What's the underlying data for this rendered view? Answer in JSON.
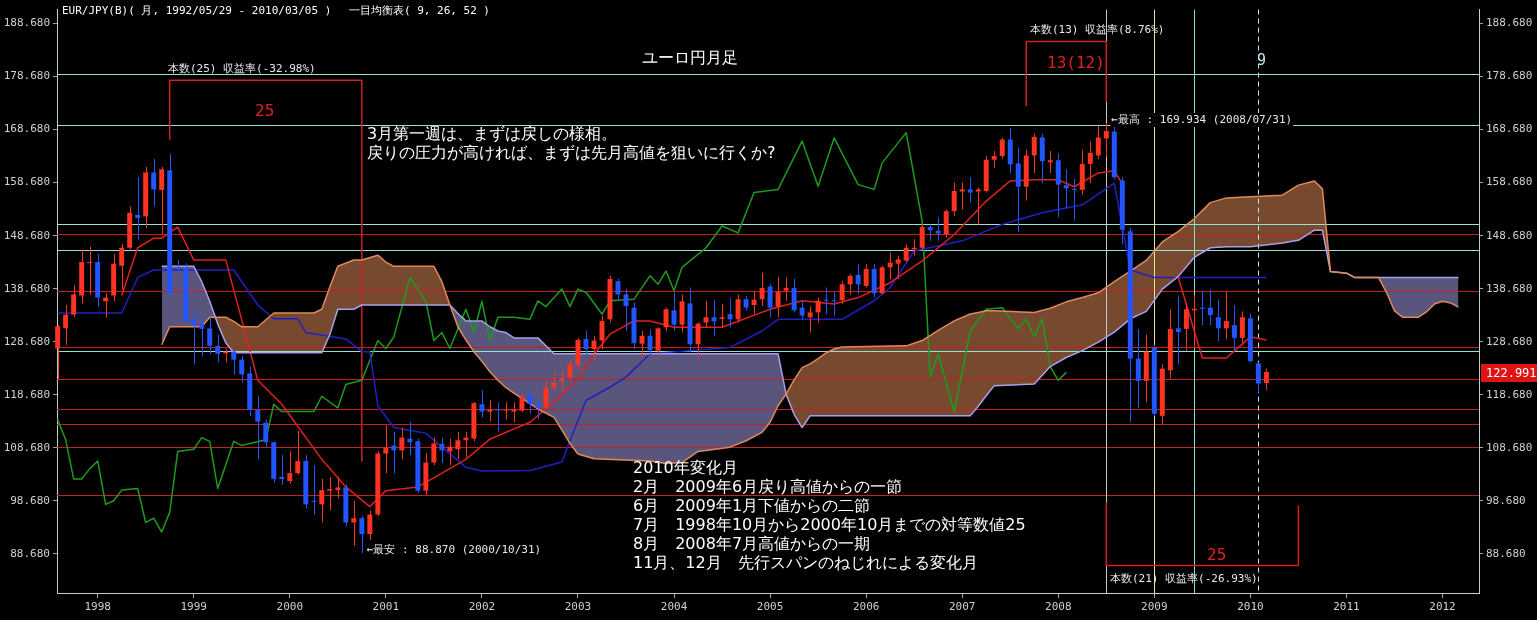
{
  "chart_data": {
    "type": "candlestick",
    "title": "EUR/JPY(B)( 月, 1992/05/29 - 2010/03/05 )　 一目均衡表( 9, 26, 52 )",
    "subtitle": "ユーロ円月足",
    "x": [
      "1997-08",
      "1997-09",
      "1997-10",
      "1997-11",
      "1997-12",
      "1998-01",
      "1998-02",
      "1998-03",
      "1998-04",
      "1998-05",
      "1998-06",
      "1998-07",
      "1998-08",
      "1998-09",
      "1998-10",
      "1998-11",
      "1998-12",
      "1999-01",
      "1999-02",
      "1999-03",
      "1999-04",
      "1999-05",
      "1999-06",
      "1999-07",
      "1999-08",
      "1999-09",
      "1999-10",
      "1999-11",
      "1999-12",
      "2000-01",
      "2000-02",
      "2000-03",
      "2000-04",
      "2000-05",
      "2000-06",
      "2000-07",
      "2000-08",
      "2000-09",
      "2000-10",
      "2000-11",
      "2000-12",
      "2001-01",
      "2001-02",
      "2001-03",
      "2001-04",
      "2001-05",
      "2001-06",
      "2001-07",
      "2001-08",
      "2001-09",
      "2001-10",
      "2001-11",
      "2001-12",
      "2002-01",
      "2002-02",
      "2002-03",
      "2002-04",
      "2002-05",
      "2002-06",
      "2002-07",
      "2002-08",
      "2002-09",
      "2002-10",
      "2002-11",
      "2002-12",
      "2003-01",
      "2003-02",
      "2003-03",
      "2003-04",
      "2003-05",
      "2003-06",
      "2003-07",
      "2003-08",
      "2003-09",
      "2003-10",
      "2003-11",
      "2003-12",
      "2004-01",
      "2004-02",
      "2004-03",
      "2004-04",
      "2004-05",
      "2004-06",
      "2004-07",
      "2004-08",
      "2004-09",
      "2004-10",
      "2004-11",
      "2004-12",
      "2005-01",
      "2005-02",
      "2005-03",
      "2005-04",
      "2005-05",
      "2005-06",
      "2005-07",
      "2005-08",
      "2005-09",
      "2005-10",
      "2005-11",
      "2005-12",
      "2006-01",
      "2006-02",
      "2006-03",
      "2006-04",
      "2006-05",
      "2006-06",
      "2006-07",
      "2006-08",
      "2006-09",
      "2006-10",
      "2006-11",
      "2006-12",
      "2007-01",
      "2007-02",
      "2007-03",
      "2007-04",
      "2007-05",
      "2007-06",
      "2007-07",
      "2007-08",
      "2007-09",
      "2007-10",
      "2007-11",
      "2007-12",
      "2008-01",
      "2008-02",
      "2008-03",
      "2008-04",
      "2008-05",
      "2008-06",
      "2008-07",
      "2008-08",
      "2008-09",
      "2008-10",
      "2008-11",
      "2008-12",
      "2009-01",
      "2009-02",
      "2009-03",
      "2009-04",
      "2009-05",
      "2009-06",
      "2009-07",
      "2009-08",
      "2009-09",
      "2009-10",
      "2009-11",
      "2009-12",
      "2010-01",
      "2010-02",
      "2010-03"
    ],
    "ohlc": [
      [
        127.4,
        131.8,
        121.6,
        131.6
      ],
      [
        131.2,
        135.6,
        128.1,
        133.8
      ],
      [
        133.8,
        139.4,
        133.3,
        137.6
      ],
      [
        137.4,
        146.1,
        135.9,
        143.7
      ],
      [
        143.5,
        146.6,
        137.6,
        143.7
      ],
      [
        143.7,
        145.2,
        135.2,
        137.0
      ],
      [
        136.3,
        137.8,
        133.3,
        137.0
      ],
      [
        137.4,
        145.2,
        136.3,
        143.4
      ],
      [
        143.0,
        147.1,
        138.5,
        146.4
      ],
      [
        146.4,
        154.2,
        146.1,
        153.0
      ],
      [
        152.6,
        159.7,
        147.8,
        152.0
      ],
      [
        152.3,
        161.6,
        150.1,
        160.6
      ],
      [
        160.6,
        163.1,
        154.2,
        157.4
      ],
      [
        157.3,
        161.6,
        148.9,
        161.2
      ],
      [
        161.0,
        164.0,
        137.4,
        137.8
      ],
      [
        142.6,
        144.1,
        141.5,
        142.4
      ],
      [
        142.6,
        143.4,
        132.4,
        132.6
      ],
      [
        132.9,
        134.8,
        124.4,
        131.8
      ],
      [
        132.0,
        133.7,
        125.9,
        131.1
      ],
      [
        131.2,
        133.3,
        126.3,
        127.9
      ],
      [
        127.9,
        130.0,
        124.8,
        126.4
      ],
      [
        126.5,
        127.4,
        124.8,
        126.8
      ],
      [
        126.8,
        127.4,
        122.5,
        125.3
      ],
      [
        125.3,
        126.0,
        121.0,
        122.5
      ],
      [
        122.7,
        124.0,
        114.7,
        115.8
      ],
      [
        115.8,
        118.4,
        106.5,
        113.6
      ],
      [
        113.4,
        114.0,
        108.8,
        109.7
      ],
      [
        109.7,
        109.9,
        102.1,
        102.8
      ],
      [
        103.2,
        107.3,
        101.7,
        102.8
      ],
      [
        102.4,
        108.0,
        101.9,
        103.9
      ],
      [
        103.9,
        111.9,
        103.6,
        106.2
      ],
      [
        106.2,
        107.3,
        97.2,
        98.0
      ],
      [
        98.7,
        105.4,
        96.1,
        98.5
      ],
      [
        98.0,
        102.8,
        94.6,
        100.7
      ],
      [
        100.6,
        103.2,
        96.9,
        100.9
      ],
      [
        100.7,
        103.2,
        99.1,
        101.2
      ],
      [
        101.2,
        101.7,
        93.9,
        94.6
      ],
      [
        94.6,
        98.7,
        90.2,
        95.4
      ],
      [
        95.4,
        95.8,
        88.87,
        92.4
      ],
      [
        92.4,
        96.9,
        91.3,
        96.1
      ],
      [
        96.1,
        108.0,
        95.8,
        107.6
      ],
      [
        107.6,
        112.9,
        103.9,
        108.7
      ],
      [
        109.1,
        111.7,
        103.9,
        108.2
      ],
      [
        108.2,
        112.5,
        106.5,
        110.6
      ],
      [
        110.4,
        113.6,
        107.3,
        109.7
      ],
      [
        109.9,
        110.4,
        100.2,
        100.6
      ],
      [
        100.6,
        107.7,
        99.7,
        105.9
      ],
      [
        105.9,
        110.6,
        105.4,
        109.5
      ],
      [
        109.4,
        110.6,
        105.8,
        108.2
      ],
      [
        108.0,
        110.4,
        105.4,
        108.9
      ],
      [
        108.4,
        111.7,
        106.5,
        110.1
      ],
      [
        110.1,
        111.7,
        106.9,
        110.6
      ],
      [
        110.4,
        117.3,
        109.9,
        117.1
      ],
      [
        116.9,
        119.5,
        114.4,
        115.5
      ],
      [
        115.5,
        117.7,
        113.6,
        115.8
      ],
      [
        115.9,
        117.1,
        111.7,
        115.8
      ],
      [
        115.7,
        117.3,
        114.0,
        115.9
      ],
      [
        115.5,
        117.3,
        113.5,
        115.8
      ],
      [
        115.7,
        118.8,
        115.4,
        118.2
      ],
      [
        118.5,
        119.5,
        115.1,
        116.9
      ],
      [
        116.9,
        117.9,
        114.1,
        116.2
      ],
      [
        116.3,
        121.6,
        116.0,
        120.0
      ],
      [
        120.1,
        122.9,
        119.4,
        121.0
      ],
      [
        121.3,
        123.2,
        119.4,
        121.8
      ],
      [
        121.9,
        125.1,
        121.3,
        124.5
      ],
      [
        124.3,
        129.4,
        123.5,
        129.0
      ],
      [
        129.2,
        130.7,
        126.0,
        127.3
      ],
      [
        127.3,
        129.8,
        125.4,
        128.9
      ],
      [
        128.9,
        133.6,
        127.3,
        132.6
      ],
      [
        132.9,
        141.1,
        132.3,
        140.5
      ],
      [
        140.1,
        140.5,
        136.4,
        137.6
      ],
      [
        137.6,
        138.6,
        130.7,
        135.4
      ],
      [
        135.1,
        136.1,
        127.3,
        128.4
      ],
      [
        128.3,
        130.7,
        125.7,
        129.8
      ],
      [
        129.8,
        131.0,
        126.0,
        127.1
      ],
      [
        127.0,
        131.4,
        126.4,
        131.2
      ],
      [
        131.4,
        135.1,
        130.7,
        134.8
      ],
      [
        134.6,
        137.9,
        130.7,
        131.9
      ],
      [
        131.9,
        137.6,
        130.4,
        136.3
      ],
      [
        135.9,
        138.9,
        126.7,
        128.2
      ],
      [
        128.2,
        132.3,
        125.7,
        132.1
      ],
      [
        132.3,
        136.4,
        131.4,
        133.3
      ],
      [
        133.3,
        136.5,
        129.8,
        132.5
      ],
      [
        133.0,
        135.8,
        131.4,
        133.3
      ],
      [
        133.9,
        136.9,
        131.4,
        132.9
      ],
      [
        132.9,
        137.6,
        132.3,
        136.7
      ],
      [
        136.7,
        137.3,
        134.5,
        135.1
      ],
      [
        135.6,
        138.3,
        133.9,
        136.6
      ],
      [
        136.7,
        141.7,
        135.4,
        138.8
      ],
      [
        139.1,
        139.5,
        133.3,
        135.1
      ],
      [
        135.3,
        140.9,
        133.3,
        138.1
      ],
      [
        138.3,
        140.8,
        136.4,
        138.8
      ],
      [
        138.8,
        140.5,
        134.2,
        134.6
      ],
      [
        135.1,
        136.4,
        132.9,
        133.6
      ],
      [
        133.3,
        135.4,
        130.4,
        134.2
      ],
      [
        134.2,
        137.0,
        132.3,
        136.4
      ],
      [
        136.6,
        138.9,
        133.9,
        136.4
      ],
      [
        136.5,
        138.0,
        133.6,
        136.3
      ],
      [
        136.5,
        140.1,
        135.8,
        139.5
      ],
      [
        139.5,
        141.4,
        137.6,
        141.1
      ],
      [
        141.3,
        143.3,
        137.6,
        139.5
      ],
      [
        139.2,
        143.3,
        138.9,
        142.4
      ],
      [
        142.4,
        143.3,
        137.0,
        137.8
      ],
      [
        137.8,
        143.0,
        137.6,
        142.7
      ],
      [
        142.7,
        145.5,
        140.5,
        143.6
      ],
      [
        143.4,
        144.9,
        140.5,
        144.2
      ],
      [
        144.0,
        147.0,
        143.6,
        146.4
      ],
      [
        146.1,
        148.0,
        144.9,
        146.4
      ],
      [
        146.4,
        150.8,
        146.1,
        150.3
      ],
      [
        150.3,
        150.8,
        147.7,
        149.7
      ],
      [
        149.6,
        152.1,
        147.7,
        149.1
      ],
      [
        148.9,
        153.6,
        148.3,
        153.3
      ],
      [
        153.3,
        158.7,
        152.4,
        157.1
      ],
      [
        157.0,
        158.7,
        153.6,
        157.4
      ],
      [
        157.4,
        159.7,
        154.9,
        156.8
      ],
      [
        157.0,
        157.7,
        150.8,
        157.4
      ],
      [
        157.1,
        163.7,
        156.8,
        163.0
      ],
      [
        163.0,
        164.6,
        161.5,
        163.7
      ],
      [
        163.7,
        167.1,
        163.2,
        166.8
      ],
      [
        166.8,
        169.0,
        160.5,
        162.1
      ],
      [
        162.3,
        165.3,
        149.3,
        157.9
      ],
      [
        157.9,
        164.9,
        155.3,
        163.8
      ],
      [
        163.8,
        167.9,
        160.5,
        167.3
      ],
      [
        167.2,
        167.9,
        158.6,
        162.7
      ],
      [
        162.5,
        164.6,
        160.5,
        162.9
      ],
      [
        162.9,
        164.2,
        152.2,
        158.3
      ],
      [
        158.2,
        161.2,
        153.8,
        157.6
      ],
      [
        157.5,
        159.4,
        151.5,
        157.3
      ],
      [
        157.3,
        164.9,
        156.4,
        162.2
      ],
      [
        162.2,
        166.4,
        158.6,
        164.3
      ],
      [
        163.8,
        169.4,
        163.1,
        167.2
      ],
      [
        167.0,
        169.934,
        163.5,
        168.4
      ],
      [
        168.3,
        169.2,
        159.3,
        159.7
      ],
      [
        159.1,
        159.7,
        147.1,
        149.8
      ],
      [
        149.5,
        150.1,
        113.6,
        125.5
      ],
      [
        125.5,
        131.1,
        116.2,
        121.3
      ],
      [
        121.3,
        130.0,
        117.3,
        126.8
      ],
      [
        127.5,
        128.1,
        114.7,
        115.1
      ],
      [
        114.7,
        124.4,
        113.2,
        123.6
      ],
      [
        123.3,
        134.8,
        121.8,
        131.1
      ],
      [
        131.2,
        137.4,
        124.4,
        130.5
      ],
      [
        131.1,
        135.9,
        127.0,
        134.8
      ],
      [
        134.6,
        137.4,
        127.4,
        134.9
      ],
      [
        135.1,
        138.1,
        131.8,
        134.9
      ],
      [
        135.1,
        138.5,
        131.8,
        133.7
      ],
      [
        133.3,
        136.6,
        128.8,
        131.2
      ],
      [
        131.2,
        138.1,
        129.2,
        132.6
      ],
      [
        131.8,
        135.6,
        127.0,
        129.4
      ],
      [
        129.4,
        134.4,
        128.1,
        133.3
      ],
      [
        133.1,
        134.0,
        124.8,
        125.0
      ],
      [
        124.6,
        124.8,
        119.2,
        120.8
      ],
      [
        120.9,
        123.6,
        119.6,
        122.991
      ]
    ],
    "colors": [
      "#ff3322",
      "#ff3322",
      "#ff3322",
      "#ff3322",
      "#ff3322",
      "#2255ff",
      "#ff3322",
      "#ff3322",
      "#ff3322",
      "#ff3322",
      "#2255ff",
      "#ff3322",
      "#2255ff",
      "#ff3322",
      "#2255ff",
      "#2255ff",
      "#2255ff",
      "#2255ff",
      "#2255ff",
      "#2255ff",
      "#2255ff",
      "#ff3322",
      "#2255ff",
      "#2255ff",
      "#2255ff",
      "#2255ff",
      "#2255ff",
      "#2255ff",
      "#2255ff",
      "#ff3322",
      "#ff3322",
      "#2255ff",
      "#2255ff",
      "#ff3322",
      "#ff3322",
      "#ff3322",
      "#2255ff",
      "#ff3322",
      "#2255ff",
      "#ff3322",
      "#ff3322",
      "#ff3322",
      "#2255ff",
      "#ff3322",
      "#2255ff",
      "#2255ff",
      "#ff3322",
      "#ff3322",
      "#2255ff",
      "#ff3322",
      "#ff3322",
      "#ff3322",
      "#ff3322",
      "#2255ff",
      "#ff3322",
      "#2255ff",
      "#ff3322",
      "#ff3322",
      "#ff3322",
      "#2255ff",
      "#2255ff",
      "#ff3322",
      "#ff3322",
      "#ff3322",
      "#ff3322",
      "#ff3322",
      "#2255ff",
      "#ff3322",
      "#ff3322",
      "#ff3322",
      "#2255ff",
      "#2255ff",
      "#2255ff",
      "#ff3322",
      "#2255ff",
      "#ff3322",
      "#ff3322",
      "#2255ff",
      "#ff3322",
      "#2255ff",
      "#ff3322",
      "#ff3322",
      "#2255ff",
      "#ff3322",
      "#2255ff",
      "#ff3322",
      "#2255ff",
      "#ff3322",
      "#ff3322",
      "#2255ff",
      "#ff3322",
      "#ff3322",
      "#2255ff",
      "#2255ff",
      "#ff3322",
      "#ff3322",
      "#2255ff",
      "#2255ff",
      "#ff3322",
      "#ff3322",
      "#2255ff",
      "#ff3322",
      "#2255ff",
      "#ff3322",
      "#ff3322",
      "#ff3322",
      "#ff3322",
      "#ff3322",
      "#ff3322",
      "#2255ff",
      "#2255ff",
      "#ff3322",
      "#ff3322",
      "#ff3322",
      "#2255ff",
      "#ff3322",
      "#ff3322",
      "#ff3322",
      "#ff3322",
      "#2255ff",
      "#2255ff",
      "#ff3322",
      "#ff3322",
      "#2255ff",
      "#ff3322",
      "#2255ff",
      "#2255ff",
      "#2255ff",
      "#ff3322",
      "#ff3322",
      "#ff3322",
      "#ff3322",
      "#2255ff",
      "#2255ff",
      "#2255ff",
      "#2255ff",
      "#ff3322",
      "#2255ff",
      "#ff3322",
      "#ff3322",
      "#2255ff",
      "#ff3322",
      "#ff3322",
      "#2255ff",
      "#2255ff",
      "#2255ff",
      "#ff3322",
      "#2255ff",
      "#ff3322",
      "#2255ff",
      "#2255ff",
      "#ff3322"
    ],
    "series": [
      {
        "type": "line",
        "color": "#e08a5a",
        "upper": [
          128.1,
          131.5,
          131.5,
          131.5,
          133.3,
          133.3,
          133.3,
          132.5,
          131.5,
          131.5,
          134.1,
          134.1,
          134.8,
          139.0,
          142.9,
          144.1,
          144.1,
          145.0,
          143.7,
          142.9,
          142.9,
          140.0,
          135.6,
          131.5,
          129.0,
          126.8,
          125.0,
          123.0,
          121.4,
          120.0,
          119.0,
          116.0,
          114.4,
          112.0,
          109.5,
          107.5,
          106.6,
          106.2,
          105.7,
          105.9,
          108.0,
          108.8,
          110.0,
          111.6,
          113.5,
          116.6,
          118.8,
          121.5,
          123.8,
          124.5,
          125.5,
          126.6,
          127.3,
          127.7,
          127.9,
          128.9,
          130.8,
          132.6,
          133.9,
          134.2,
          134.5,
          134.5,
          134.2,
          135.0,
          136.2,
          137.0,
          137.9,
          140.0,
          142.0,
          144.0,
          147.5,
          149.5,
          151.9,
          154.9,
          155.8,
          156.0,
          156.3,
          158.2,
          159.0,
          157.5,
          141.9,
          141.6,
          140.8,
          140.8,
          138.0,
          134.5,
          133.3,
          133.3,
          134.3,
          135.8,
          136.3,
          136.0,
          135.2
        ],
        "lower": [
          142.9,
          142.9,
          142.9,
          140.0,
          136.3,
          132.0,
          128.5,
          126.6,
          126.6,
          126.6,
          126.6,
          126.6,
          126.6,
          130.0,
          134.8,
          134.8,
          135.6,
          135.6,
          135.6,
          135.6,
          135.6,
          135.6,
          135.6,
          134.0,
          132.6,
          132.6,
          132.6,
          131.5,
          130.7,
          130.4,
          129.4,
          129.4,
          126.4,
          126.4,
          126.4,
          126.4,
          126.4,
          126.4,
          126.4,
          126.4,
          126.4,
          126.4,
          126.4,
          126.4,
          126.4,
          126.4,
          118.8,
          115.0,
          112.5,
          114.7,
          114.7,
          114.7,
          114.7,
          114.7,
          114.7,
          114.7,
          114.7,
          114.7,
          114.7,
          116.5,
          118.5,
          120.4,
          120.7,
          124.0,
          125.7,
          127.0,
          128.6,
          130.5,
          133.0,
          134.4,
          138.6,
          141.0,
          144.6,
          146.4,
          146.6,
          146.6,
          147.3,
          147.8,
          149.7,
          149.7,
          141.9,
          141.6,
          140.8,
          140.8,
          140.8,
          140.8,
          140.8,
          140.8,
          140.8,
          140.8,
          140.8,
          140.8,
          140.8
        ],
        "x": [
          "1998-09",
          "1998-10",
          "1999-01",
          "1999-02",
          "1999-03",
          "1999-04",
          "1999-05",
          "1999-06",
          "1999-07",
          "1999-09",
          "1999-11",
          "2000-04",
          "2000-05",
          "2000-06",
          "2000-07",
          "2000-09",
          "2000-10",
          "2000-12",
          "2001-01",
          "2001-02",
          "2001-07",
          "2001-08",
          "2001-09",
          "2001-10",
          "2001-11",
          "2001-12",
          "2002-01",
          "2002-02",
          "2002-03",
          "2002-04",
          "2002-05",
          "2002-08",
          "2002-10",
          "2002-11",
          "2002-12",
          "2003-01",
          "2003-03",
          "2003-10",
          "2003-12",
          "2004-02",
          "2004-04",
          "2004-08",
          "2004-10",
          "2004-12",
          "2005-01",
          "2005-02",
          "2005-03",
          "2005-04",
          "2005-05",
          "2005-06",
          "2005-07",
          "2005-08",
          "2005-09",
          "2005-10",
          "2006-06",
          "2006-08",
          "2006-10",
          "2006-12",
          "2007-02",
          "2007-03",
          "2007-04",
          "2007-05",
          "2007-10",
          "2007-12",
          "2008-02",
          "2008-04",
          "2008-06",
          "2008-08",
          "2008-10",
          "2008-12",
          "2009-02",
          "2009-04",
          "2009-06",
          "2009-08",
          "2009-10",
          "2010-01",
          "2010-05",
          "2010-07",
          "2010-09",
          "2010-10",
          "2010-11",
          "2011-01",
          "2011-02",
          "2011-05",
          "2011-06",
          "2011-07",
          "2011-08",
          "2011-10",
          "2011-11",
          "2011-12",
          "2012-01",
          "2012-02",
          "2012-03"
        ],
        "values": [
          128.1,
          131.5,
          131.5,
          131.5,
          133.3,
          133.3,
          133.3,
          132.5,
          131.5,
          131.5,
          134.1,
          134.1,
          134.8,
          139.0,
          142.9,
          144.1,
          144.1,
          145.0,
          143.7,
          142.9,
          142.9,
          140.0,
          135.6,
          131.5,
          129.0,
          126.8,
          125.0,
          123.0,
          121.4,
          120.0,
          119.0,
          116.0,
          114.4,
          112.0,
          109.5,
          107.5,
          106.6,
          106.2,
          105.7,
          105.9,
          108.0,
          108.8,
          110.0,
          111.6,
          113.5,
          116.6,
          118.8,
          121.5,
          123.8,
          124.5,
          125.5,
          126.6,
          127.3,
          127.7,
          127.9,
          128.9,
          130.8,
          132.6,
          133.9,
          134.2,
          134.5,
          134.5,
          134.2,
          135.0,
          136.2,
          137.0,
          137.9,
          140.0,
          142.0,
          144.0,
          147.5,
          149.5,
          151.9,
          154.9,
          155.8,
          156.0,
          156.3,
          158.2,
          159.0,
          157.5,
          141.9,
          141.6,
          140.8,
          140.8,
          138.0,
          134.5,
          133.3,
          133.3,
          134.3,
          135.8,
          136.3,
          136.0,
          135.2
        ]
      },
      {
        "type": "line",
        "color": "#a8a0e8",
        "x": [
          "1998-09",
          "1998-10",
          "1999-01",
          "1999-02",
          "1999-03",
          "1999-04",
          "1999-05",
          "1999-06",
          "1999-07",
          "1999-09",
          "1999-11",
          "2000-04",
          "2000-05",
          "2000-06",
          "2000-07",
          "2000-09",
          "2000-10",
          "2000-12",
          "2001-01",
          "2001-02",
          "2001-07",
          "2001-08",
          "2001-09",
          "2001-10",
          "2001-11",
          "2001-12",
          "2002-01",
          "2002-02",
          "2002-03",
          "2002-04",
          "2002-05",
          "2002-08",
          "2002-10",
          "2002-11",
          "2002-12",
          "2003-01",
          "2003-03",
          "2003-10",
          "2003-12",
          "2004-02",
          "2004-04",
          "2004-08",
          "2004-10",
          "2004-12",
          "2005-01",
          "2005-02",
          "2005-03",
          "2005-04",
          "2005-05",
          "2005-06",
          "2005-07",
          "2005-08",
          "2005-09",
          "2005-10",
          "2006-06",
          "2006-08",
          "2006-10",
          "2006-12",
          "2007-02",
          "2007-03",
          "2007-04",
          "2007-05",
          "2007-10",
          "2007-12",
          "2008-02",
          "2008-04",
          "2008-06",
          "2008-08",
          "2008-10",
          "2008-12",
          "2009-02",
          "2009-04",
          "2009-06",
          "2009-08",
          "2009-10",
          "2010-01",
          "2010-05",
          "2010-07",
          "2010-09",
          "2010-10",
          "2010-11",
          "2011-01",
          "2011-02",
          "2011-05",
          "2011-06",
          "2011-07",
          "2011-08",
          "2011-10",
          "2011-11",
          "2011-12",
          "2012-01",
          "2012-02",
          "2012-03"
        ],
        "values": [
          142.9,
          142.9,
          142.9,
          140.0,
          136.3,
          132.0,
          128.5,
          126.6,
          126.6,
          126.6,
          126.6,
          126.6,
          126.6,
          130.0,
          134.8,
          134.8,
          135.6,
          135.6,
          135.6,
          135.6,
          135.6,
          135.6,
          135.6,
          134.0,
          132.6,
          132.6,
          132.6,
          131.5,
          130.7,
          130.4,
          129.4,
          129.4,
          126.4,
          126.4,
          126.4,
          126.4,
          126.4,
          126.4,
          126.4,
          126.4,
          126.4,
          126.4,
          126.4,
          126.4,
          126.4,
          126.4,
          118.8,
          115.0,
          112.5,
          114.7,
          114.7,
          114.7,
          114.7,
          114.7,
          114.7,
          114.7,
          114.7,
          114.7,
          114.7,
          116.5,
          118.5,
          120.4,
          120.7,
          124.0,
          125.7,
          127.0,
          128.6,
          130.5,
          133.0,
          134.4,
          138.6,
          141.0,
          144.6,
          146.4,
          146.6,
          146.6,
          147.3,
          147.8,
          149.7,
          149.7,
          141.9,
          141.6,
          140.8,
          140.8,
          140.8,
          140.8,
          140.8,
          140.8,
          140.8,
          140.8,
          140.8,
          140.8,
          140.8
        ]
      },
      {
        "type": "line",
        "color": "#e02020",
        "x": [
          "1998-04",
          "1998-06",
          "1998-08",
          "1998-09",
          "1998-11",
          "1999-01",
          "1999-05",
          "1999-09",
          "1999-12",
          "2000-05",
          "2000-08",
          "2000-11",
          "2001-01",
          "2001-05",
          "2001-11",
          "2002-02",
          "2002-07",
          "2002-10",
          "2003-01",
          "2003-03",
          "2003-05",
          "2003-08",
          "2003-10",
          "2004-01",
          "2004-07",
          "2005-01",
          "2005-05",
          "2005-09",
          "2005-12",
          "2006-04",
          "2006-08",
          "2006-12",
          "2007-04",
          "2007-07",
          "2007-10",
          "2008-01",
          "2008-03",
          "2008-06",
          "2008-08",
          "2008-09",
          "2008-10",
          "2009-04",
          "2009-07",
          "2009-10",
          "2010-01",
          "2010-03"
        ],
        "values": [
          137.4,
          146.4,
          148.2,
          148.2,
          150.3,
          144.1,
          144.1,
          121.4,
          116.9,
          106.5,
          101.3,
          97.6,
          100.6,
          101.3,
          106.5,
          110.3,
          113.5,
          117.3,
          121.6,
          126.3,
          130.1,
          132.6,
          132.6,
          131.4,
          131.4,
          134.8,
          136.4,
          135.8,
          137.0,
          139.8,
          143.9,
          148.9,
          155.2,
          159.0,
          159.2,
          159.2,
          157.9,
          160.5,
          160.9,
          158.5,
          null,
          140.8,
          125.6,
          125.6,
          129.6,
          129.0
        ]
      },
      {
        "type": "line",
        "color": "#2020c0",
        "x": [
          "1997-08",
          "1998-04",
          "1998-06",
          "1998-08",
          "1999-06",
          "1999-09",
          "1999-11",
          "2000-02",
          "2000-03",
          "2000-08",
          "2000-10",
          "2000-11",
          "2000-12",
          "2001-02",
          "2001-06",
          "2001-11",
          "2002-01",
          "2002-07",
          "2002-11",
          "2002-12",
          "2003-02",
          "2003-05",
          "2003-07",
          "2003-10",
          "2004-03",
          "2004-08",
          "2004-12",
          "2005-02",
          "2005-10",
          "2006-02",
          "2006-04",
          "2006-07",
          "2007-01",
          "2007-06",
          "2007-11",
          "2008-04",
          "2008-08",
          "2008-10",
          "2009-01",
          "2010-03"
        ],
        "values": [
          134.1,
          134.1,
          140.8,
          142.2,
          142.2,
          135.6,
          133.0,
          133.0,
          130.4,
          129.2,
          126.8,
          126.8,
          116.6,
          112.5,
          111.4,
          105.0,
          104.3,
          104.4,
          106.0,
          110.0,
          117.6,
          120.1,
          122.0,
          126.4,
          127.0,
          127.6,
          130.7,
          132.9,
          132.9,
          136.4,
          138.9,
          145.8,
          147.7,
          150.8,
          153.0,
          154.5,
          158.6,
          142.2,
          140.8,
          140.8
        ]
      },
      {
        "type": "line",
        "color": "#1f9a1f",
        "x": [
          "1997-08",
          "1997-09",
          "1997-10",
          "1997-11",
          "1997-12",
          "1998-01",
          "1998-02",
          "1998-03",
          "1998-04",
          "1998-06",
          "1998-07",
          "1998-08",
          "1998-09",
          "1998-10",
          "1998-11",
          "1999-01",
          "1999-02",
          "1999-03",
          "1999-04",
          "1999-06",
          "1999-07",
          "1999-10",
          "1999-11",
          "1999-12",
          "2000-04",
          "2000-05",
          "2000-07",
          "2000-08",
          "2000-10",
          "2000-12",
          "2001-01",
          "2001-02",
          "2001-04",
          "2001-06",
          "2001-07",
          "2001-08",
          "2001-09",
          "2001-11",
          "2001-12",
          "2002-01",
          "2002-02",
          "2002-03",
          "2002-05",
          "2002-07",
          "2002-08",
          "2002-09",
          "2002-11",
          "2002-12",
          "2003-01",
          "2003-02",
          "2003-04",
          "2003-05",
          "2003-08",
          "2003-10",
          "2003-11",
          "2003-12",
          "2004-01",
          "2004-02",
          "2004-05",
          "2004-07",
          "2004-09",
          "2004-11",
          "2005-02",
          "2005-05",
          "2005-07",
          "2005-09",
          "2005-12",
          "2006-02",
          "2006-03",
          "2006-06",
          "2006-08",
          "2006-09",
          "2006-10",
          "2006-12",
          "2007-02",
          "2007-04",
          "2007-06",
          "2007-08",
          "2007-09",
          "2007-10",
          "2007-11",
          "2007-12",
          "2008-01",
          "2008-02"
        ],
        "values": [
          114.0,
          110.2,
          102.8,
          102.8,
          104.7,
          106.2,
          98.0,
          98.7,
          100.7,
          101.0,
          94.6,
          95.4,
          92.8,
          96.5,
          108.0,
          108.4,
          110.6,
          109.9,
          101.0,
          109.9,
          109.1,
          110.2,
          116.9,
          115.5,
          115.5,
          118.4,
          116.2,
          120.6,
          121.4,
          128.9,
          127.4,
          129.6,
          140.8,
          136.3,
          128.9,
          130.4,
          127.4,
          134.8,
          130.4,
          136.3,
          128.9,
          133.3,
          133.3,
          132.9,
          136.4,
          135.3,
          138.6,
          135.3,
          138.6,
          138.0,
          133.9,
          136.4,
          136.7,
          141.1,
          139.5,
          142.0,
          138.3,
          142.7,
          146.4,
          150.5,
          149.2,
          156.8,
          157.4,
          166.5,
          158.0,
          167.1,
          158.3,
          157.4,
          162.4,
          168.1,
          151.4,
          122.0,
          126.4,
          115.4,
          130.7,
          134.8,
          135.1,
          131.1,
          133.0,
          129.6,
          133.0,
          124.0,
          121.4,
          122.9
        ]
      },
      {
        "type": "line",
        "color": "#d02020",
        "x": [
          "1998-10",
          "1998-10",
          "2000-10",
          "2000-10"
        ],
        "values": [
          166.7,
          178.0,
          178.0,
          106.2
        ]
      },
      {
        "type": "line",
        "color": "#d02020",
        "x": [
          "2007-09",
          "2007-09",
          "2008-07",
          "2008-07"
        ],
        "values": [
          173.1,
          185.3,
          185.3,
          174.0
        ]
      },
      {
        "type": "line",
        "color": "#d02020",
        "x": [
          "2008-07",
          "2008-07",
          "2010-07",
          "2010-07"
        ],
        "values": [
          98.2,
          86.5,
          86.5,
          97.8
        ]
      }
    ],
    "xlim": [
      "1997-07-29",
      "2012-05-18"
    ],
    "xticks": [
      "1998",
      "1999",
      "2000",
      "2001",
      "2002",
      "2003",
      "2004",
      "2005",
      "2006",
      "2007",
      "2008",
      "2009",
      "2010",
      "2011",
      "2012"
    ],
    "ylim": [
      81.3,
      191.3
    ],
    "yticks": [
      {
        "value": 88.68,
        "label": "88.680"
      },
      {
        "value": 98.68,
        "label": "98.680"
      },
      {
        "value": 108.68,
        "label": "108.680"
      },
      {
        "value": 118.68,
        "label": "118.680"
      },
      {
        "value": 128.68,
        "label": "128.680"
      },
      {
        "value": 138.68,
        "label": "138.680"
      },
      {
        "value": 148.68,
        "label": "148.680"
      },
      {
        "value": 158.68,
        "label": "158.680"
      },
      {
        "value": 168.68,
        "label": "168.680"
      },
      {
        "value": 178.68,
        "label": "178.680"
      },
      {
        "value": 188.68,
        "label": "188.680"
      }
    ],
    "y2lim": [
      81.3,
      191.3
    ],
    "y2ticks": [
      {
        "value": 88.68,
        "label": "88.680"
      },
      {
        "value": 98.68,
        "label": "98.680"
      },
      {
        "value": 108.68,
        "label": "108.680"
      },
      {
        "value": 118.68,
        "label": "118.680"
      },
      {
        "value": 128.68,
        "label": "128.680"
      },
      {
        "value": 138.68,
        "label": "138.680"
      },
      {
        "value": 148.68,
        "label": "148.680"
      },
      {
        "value": 158.68,
        "label": "158.680"
      },
      {
        "value": 168.68,
        "label": "168.680"
      },
      {
        "value": 178.68,
        "label": "178.680"
      },
      {
        "value": 188.68,
        "label": "188.680"
      }
    ],
    "ref_lines": [
      {
        "axis": "y",
        "value": 179.2,
        "color": "#9ee0d0"
      },
      {
        "axis": "y",
        "value": 169.5,
        "color": "#9ee0d0"
      },
      {
        "axis": "y",
        "value": 150.8,
        "color": "#9ee0d0"
      },
      {
        "axis": "y",
        "value": 146.0,
        "color": "#9ee0d0"
      },
      {
        "axis": "y",
        "value": 126.9,
        "color": "#9ee0d0"
      },
      {
        "axis": "y",
        "value": 148.9,
        "color": "#c81e1e"
      },
      {
        "axis": "y",
        "value": 138.2,
        "color": "#c81e1e"
      },
      {
        "axis": "y",
        "value": 127.7,
        "color": "#c81e1e"
      },
      {
        "axis": "y",
        "value": 121.6,
        "color": "#c81e1e"
      },
      {
        "axis": "y",
        "value": 115.9,
        "color": "#c81e1e"
      },
      {
        "axis": "y",
        "value": 113.2,
        "color": "#c81e1e"
      },
      {
        "axis": "y",
        "value": 108.9,
        "color": "#c81e1e"
      },
      {
        "axis": "y",
        "value": 99.8,
        "color": "#c81e1e"
      },
      {
        "axis": "x",
        "value": "2008-07",
        "color": "#c8c8c8"
      },
      {
        "axis": "x",
        "value": "2009-01",
        "color": "#e8e890"
      },
      {
        "axis": "x",
        "value": "2009-06",
        "color": "#80e0d0"
      },
      {
        "axis": "x",
        "value": "2010-02",
        "color": "#b8e8e8",
        "line_style": "dashed",
        "label": "9"
      }
    ],
    "annotations": [
      "3月第一週は、まずは戻しの様相。",
      "戻りの圧力が高ければ、まずは先月高値を狙いに行くか?",
      "2010年変化月",
      "2月　2009年6月戻り高値からの一節",
      "6月　2009年1月下値からの二節",
      "7月　1998年10月から2000年10月までの対等数値25",
      "8月　2008年7月高値からの一期",
      "11月、12月　先行スパンのねじれによる変化月",
      "本数(25) 収益率(-32.98%)",
      "25",
      "本数(13) 収益率(8.76%)",
      "13(12)",
      "本数(21) 収益率(-26.93%)",
      "25",
      "122.991",
      {
        "text": "←最安 : 88.870 (2000/10/31)",
        "x": "2000-10",
        "y": 88.87
      },
      {
        "text": "←最高 : 169.934 (2008/07/31)",
        "x": "2008-07",
        "y": 169.934
      }
    ]
  }
}
